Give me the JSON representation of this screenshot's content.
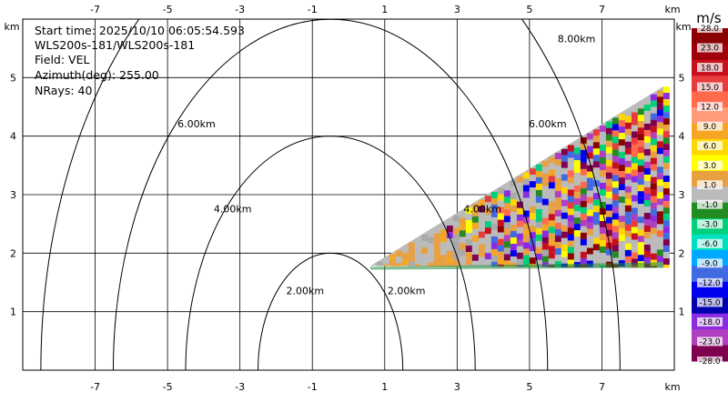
{
  "info": {
    "start_time": "Start time: 2025/10/10 06:05:54.593",
    "site": "WLS200s-181/WLS200s-181",
    "field": "Field: VEL",
    "azimuth": "Azimuth(deg): 255.00",
    "nrays": "NRays: 40"
  },
  "chart_data": {
    "type": "heatmap",
    "title": "",
    "xlabel": "km",
    "ylabel": "km",
    "xlim": [
      -9,
      9
    ],
    "ylim": [
      0,
      6
    ],
    "x_ticks": [
      "-7",
      "-5",
      "-3",
      "-1",
      "1",
      "3",
      "5",
      "7"
    ],
    "y_ticks": [
      "1",
      "2",
      "3",
      "4",
      "5"
    ],
    "grid": true,
    "range_rings": [
      {
        "range_km": 2,
        "label": "2.00km",
        "center": [
          -0.5,
          0
        ]
      },
      {
        "range_km": 4,
        "label": "4.00km",
        "center": [
          -0.5,
          0
        ]
      },
      {
        "range_km": 6,
        "label": "6.00km",
        "center": [
          -0.5,
          0
        ]
      },
      {
        "range_km": 8,
        "label": "8.00km",
        "center": [
          -0.5,
          0
        ]
      }
    ],
    "ring_label_positions": [
      {
        "ring": 0,
        "x": -1.2,
        "y": 1.3
      },
      {
        "ring": 0,
        "x": 1.6,
        "y": 1.3
      },
      {
        "ring": 1,
        "x": -3.2,
        "y": 2.7
      },
      {
        "ring": 1,
        "x": 3.7,
        "y": 2.7
      },
      {
        "ring": 2,
        "x": -4.2,
        "y": 4.15
      },
      {
        "ring": 2,
        "x": 5.5,
        "y": 4.15
      },
      {
        "ring": 3,
        "x": 6.3,
        "y": 5.6
      }
    ],
    "scan_sector": {
      "apex": [
        0.6,
        1.78
      ],
      "upper_edge_end": [
        8.7,
        4.85
      ],
      "lower_edge_end": [
        8.7,
        1.75
      ],
      "dominant_field": "mostly -1.0 to 1.0 m/s near the origin, mixed velocities at long range"
    },
    "colorbar": {
      "unit": "m/s",
      "labels": [
        "28.0",
        "23.0",
        "18.0",
        "15.0",
        "12.0",
        "9.0",
        "6.0",
        "3.0",
        "1.0",
        "-1.0",
        "-3.0",
        "-6.0",
        "-9.0",
        "-12.0",
        "-15.0",
        "-18.0",
        "-23.0",
        "-28.0"
      ],
      "colors": [
        "#8b0000",
        "#a0000a",
        "#c80f1e",
        "#e83c3c",
        "#ff6a4d",
        "#ff9a7a",
        "#f5a623",
        "#ffd700",
        "#ffff00",
        "#e8a040",
        "#bbbbbb",
        "#228b22",
        "#00d07a",
        "#00e0c0",
        "#00a8ff",
        "#4169e1",
        "#0000ee",
        "#0000b0",
        "#8a2be2",
        "#b040c0",
        "#800050"
      ]
    }
  }
}
